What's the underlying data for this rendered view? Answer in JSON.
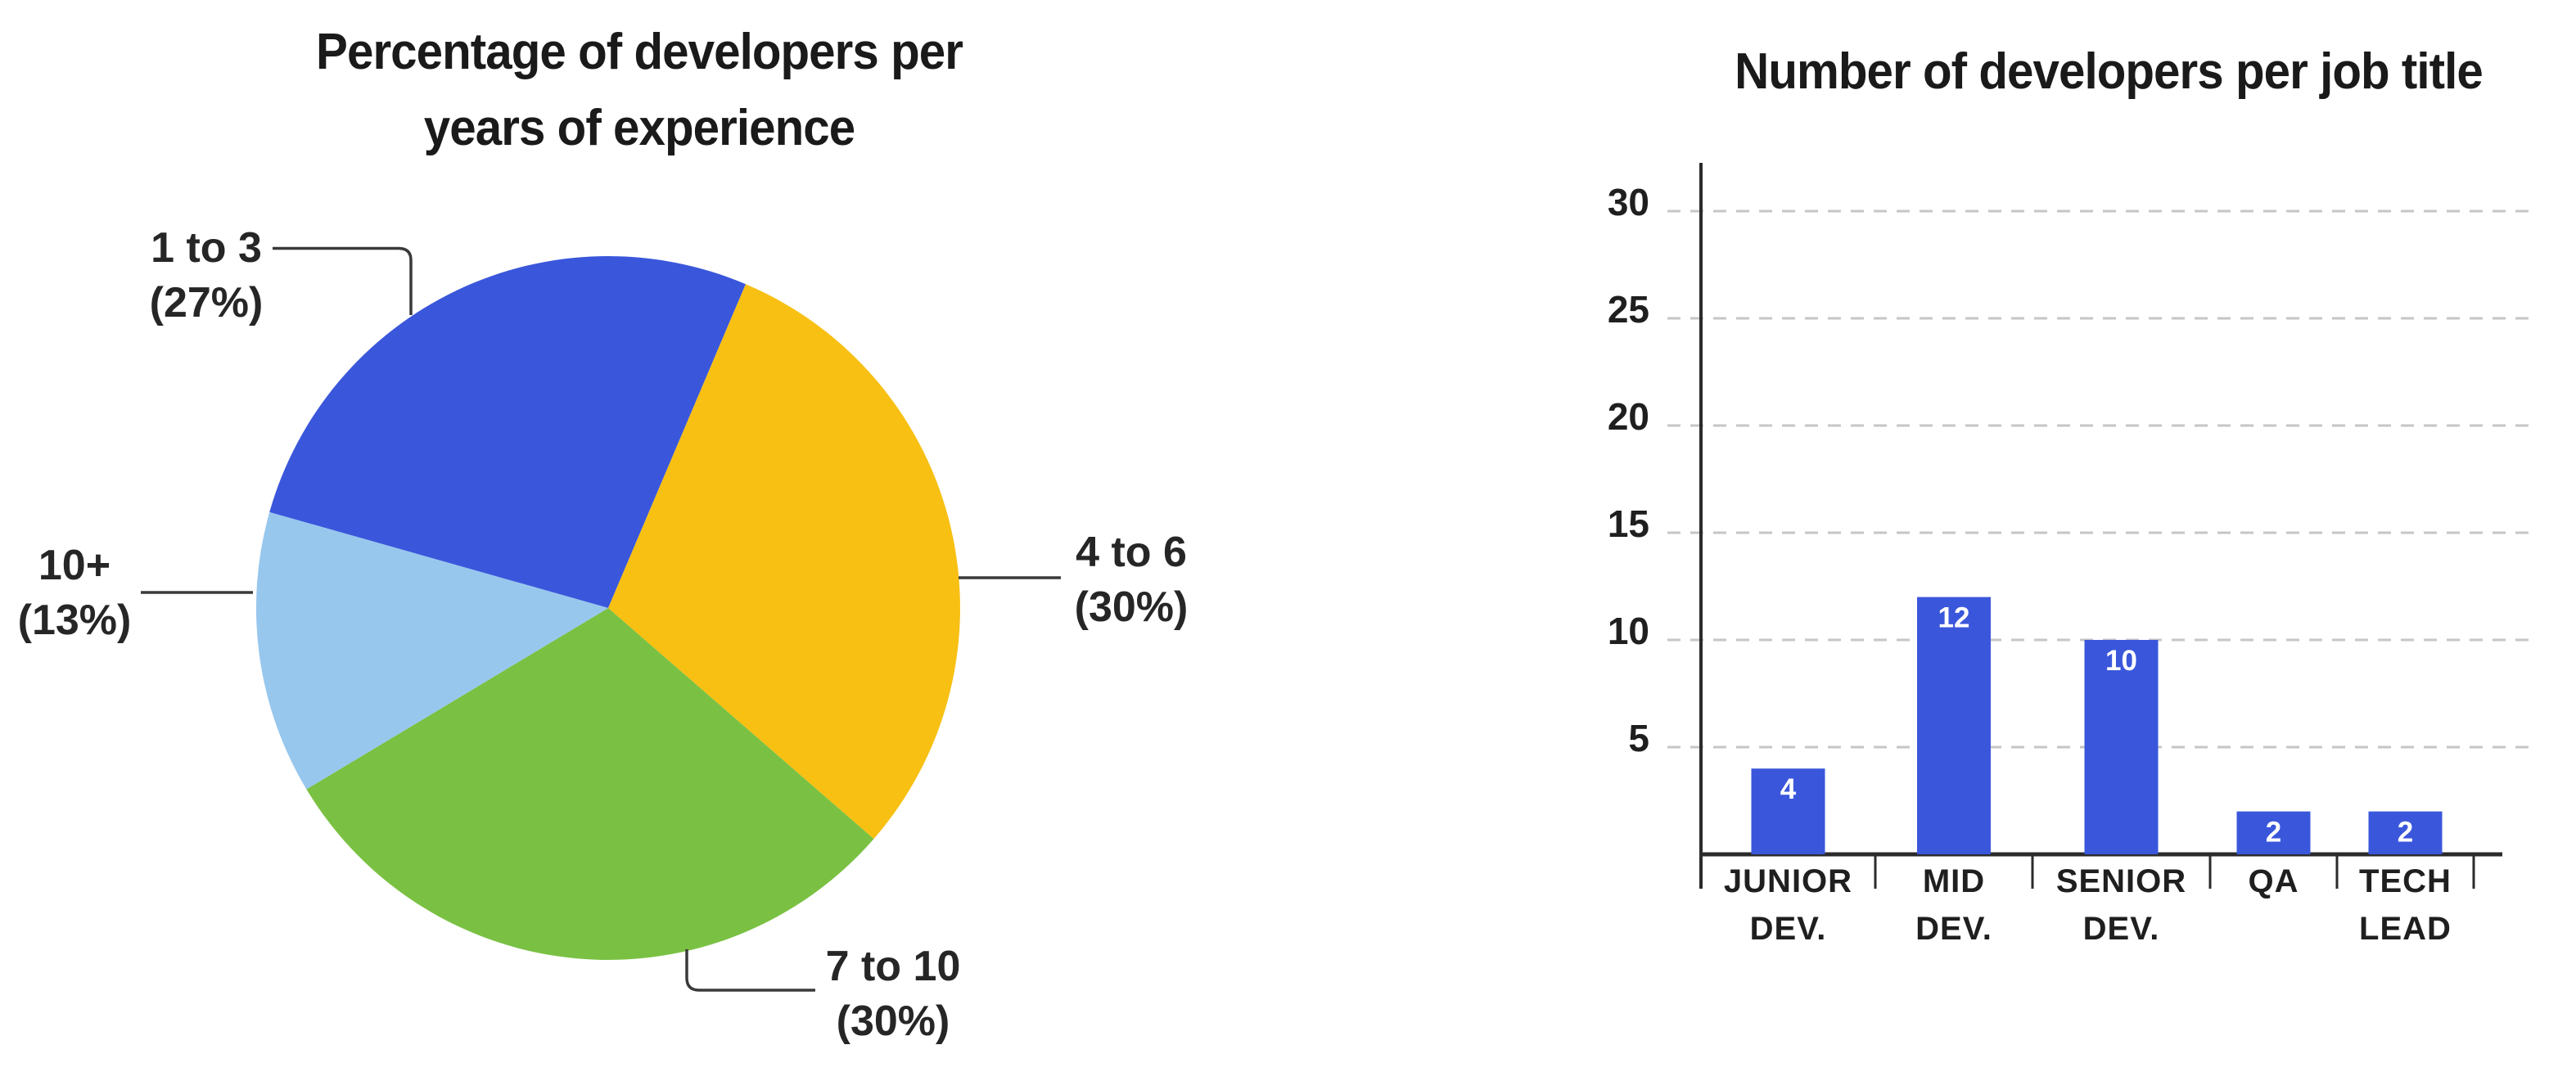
{
  "page": {
    "background": "#FFFFFF"
  },
  "chart_data": [
    {
      "type": "pie",
      "title": "Percentage of developers per years of experience",
      "title_lines": [
        "Percentage of developers per",
        "years of experience"
      ],
      "slices": [
        {
          "label": "1 to 3",
          "value": 27,
          "value_label": "(27%)",
          "color": "#3A57DB"
        },
        {
          "label": "4 to 6",
          "value": 30,
          "value_label": "(30%)",
          "color": "#F8C013"
        },
        {
          "label": "7 to 10",
          "value": 30,
          "value_label": "(30%)",
          "color": "#7AC143"
        },
        {
          "label": "10+",
          "value": 13,
          "value_label": "(13%)",
          "color": "#98C7EE"
        }
      ],
      "start_angle_deg": -74.2,
      "units": "percent",
      "legend_position": "callout-labels",
      "text_color": "#262626"
    },
    {
      "type": "bar",
      "title": "Number of developers per job title",
      "categories": [
        "JUNIOR DEV.",
        "MID DEV.",
        "SENIOR DEV.",
        "QA",
        "TECH LEAD"
      ],
      "category_label_lines": [
        [
          "JUNIOR",
          "DEV."
        ],
        [
          "MID",
          "DEV."
        ],
        [
          "SENIOR",
          "DEV."
        ],
        [
          "QA"
        ],
        [
          "TECH",
          "LEAD"
        ]
      ],
      "values": [
        4,
        12,
        10,
        2,
        2
      ],
      "value_labels": [
        "4",
        "12",
        "10",
        "2",
        "2"
      ],
      "bar_color": "#3A57DB",
      "value_label_color": "#FFFFFF",
      "y_ticks": [
        5,
        10,
        15,
        20,
        25,
        30
      ],
      "ylim": [
        0,
        32
      ],
      "xlabel": "",
      "ylabel": "",
      "grid": {
        "horizontal": true,
        "style": "dashed",
        "color": "#C6C6C6"
      },
      "axis_color": "#2B2B2B",
      "text_color": "#1F1F1F"
    }
  ]
}
